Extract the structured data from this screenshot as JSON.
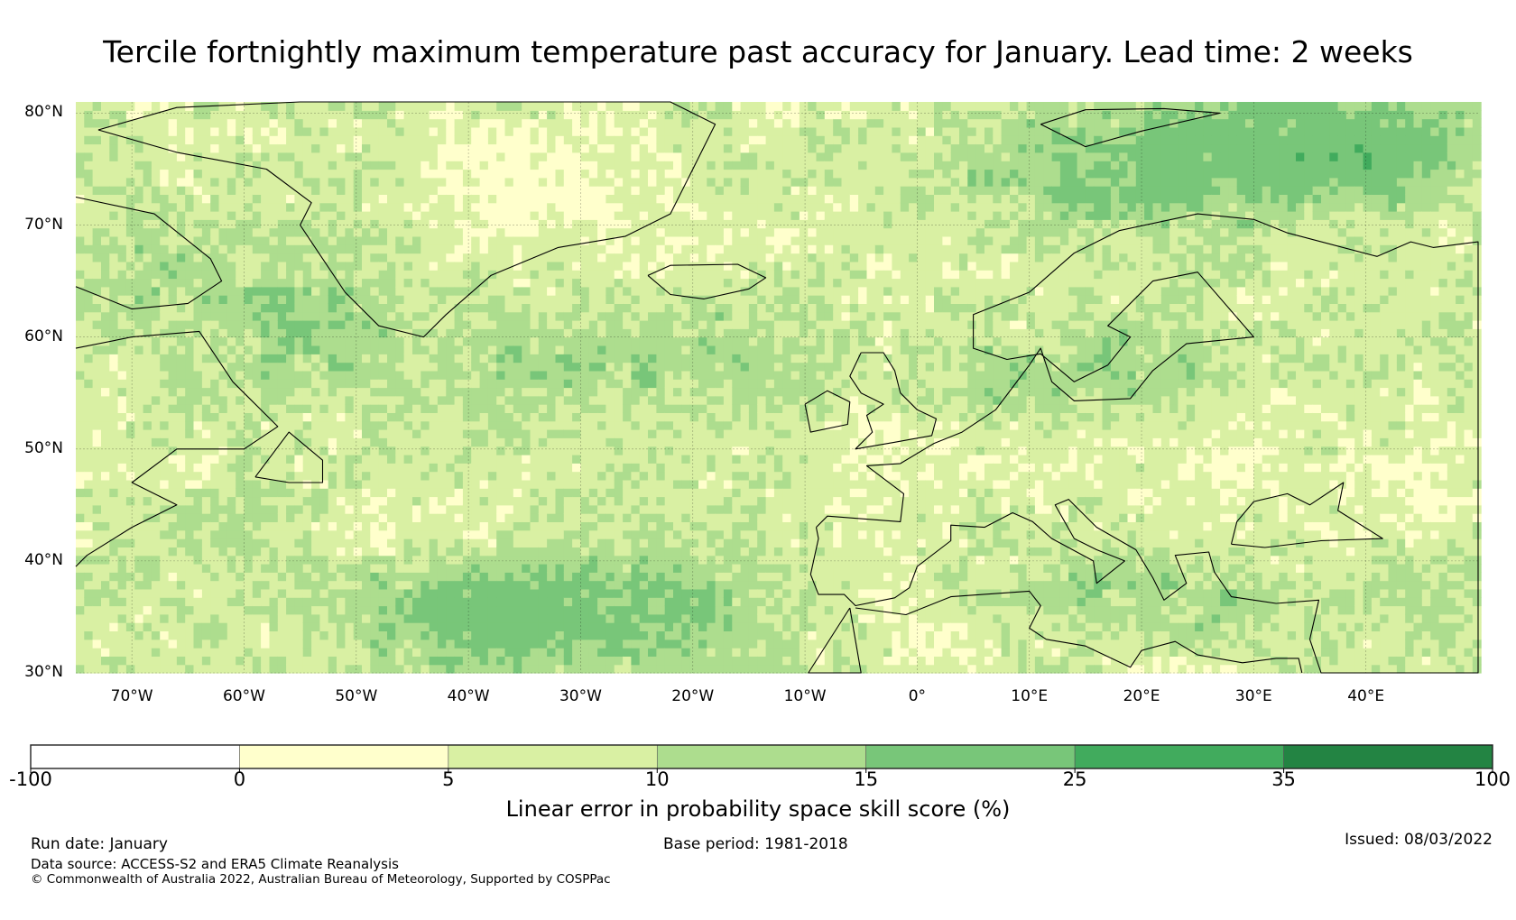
{
  "title": "Tercile fortnightly maximum temperature past accuracy for January. Lead time: 2 weeks",
  "chart_data": {
    "type": "heatmap",
    "title": "Tercile fortnightly maximum temperature past accuracy for January. Lead time: 2 weeks",
    "projection": "plate carree",
    "lon_range": [
      -75,
      50
    ],
    "lat_range": [
      30,
      81
    ],
    "lat_ticks": [
      "80°N",
      "70°N",
      "60°N",
      "50°N",
      "40°N",
      "30°N"
    ],
    "lat_values": [
      80,
      70,
      60,
      50,
      40,
      30
    ],
    "lon_ticks": [
      "70°W",
      "60°W",
      "50°W",
      "40°W",
      "30°W",
      "20°W",
      "10°W",
      "0°",
      "10°E",
      "20°E",
      "30°E",
      "40°E"
    ],
    "lon_values": [
      -70,
      -60,
      -50,
      -40,
      -30,
      -20,
      -10,
      0,
      10,
      20,
      30,
      40
    ],
    "grid": true,
    "colorbar": {
      "label": "Linear error in probability space skill score (%)",
      "bounds": [
        "-100",
        "0",
        "5",
        "10",
        "15",
        "25",
        "35",
        "100"
      ],
      "bound_values": [
        -100,
        0,
        5,
        10,
        15,
        25,
        35,
        100
      ],
      "colors": [
        "#ffffff",
        "#ffffcc",
        "#d9f0a3",
        "#addd8e",
        "#78c679",
        "#41ab5d",
        "#238443"
      ],
      "placement": "bottom"
    }
  },
  "footer": {
    "run_date": "Run date: January",
    "base_period": "Base period: 1981-2018",
    "issued": "Issued: 08/03/2022",
    "data_source": "Data source: ACCESS-S2 and ERA5 Climate Reanalysis",
    "copyright": "© Commonwealth of Australia 2022, Australian Bureau of Meteorology, Supported by COSPPac"
  }
}
